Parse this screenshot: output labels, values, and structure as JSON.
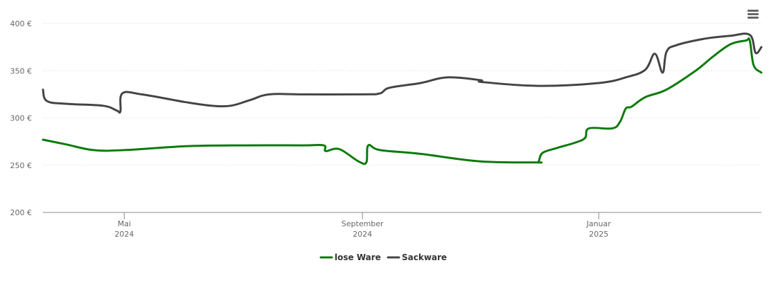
{
  "colors": {
    "lose_ware": "#0a7a0a",
    "sackware": "#444444",
    "grid": "#e6e6e6",
    "axis": "#888888"
  },
  "icons": {
    "menu": "hamburger-menu-icon"
  },
  "chart_data": {
    "type": "line",
    "title": "",
    "xlabel": "",
    "ylabel": "",
    "ylim": [
      200,
      400
    ],
    "xlim": [
      "2024-03-20",
      "2025-03-26"
    ],
    "y_ticks": [
      "200 €",
      "250 €",
      "300 €",
      "350 €",
      "400 €"
    ],
    "y_tick_values": [
      200,
      250,
      300,
      350,
      400
    ],
    "x_ticks": [
      {
        "date": "2024-05-01",
        "line1": "Mai",
        "line2": "2024"
      },
      {
        "date": "2024-09-01",
        "line1": "September",
        "line2": "2024"
      },
      {
        "date": "2025-01-01",
        "line1": "Januar",
        "line2": "2025"
      }
    ],
    "grid": true,
    "legend_position": "bottom-center",
    "series": [
      {
        "name": "lose Ware",
        "color": "#0a7a0a",
        "points": [
          [
            "2024-03-20",
            277
          ],
          [
            "2024-04-01",
            272
          ],
          [
            "2024-04-15",
            266
          ],
          [
            "2024-05-01",
            266
          ],
          [
            "2024-06-01",
            270
          ],
          [
            "2024-07-01",
            271
          ],
          [
            "2024-08-01",
            271
          ],
          [
            "2024-08-12",
            271
          ],
          [
            "2024-08-13",
            265
          ],
          [
            "2024-08-20",
            267
          ],
          [
            "2024-08-30",
            254
          ],
          [
            "2024-09-03",
            253
          ],
          [
            "2024-09-04",
            271
          ],
          [
            "2024-09-10",
            266
          ],
          [
            "2024-10-01",
            262
          ],
          [
            "2024-11-01",
            254
          ],
          [
            "2024-11-30",
            253
          ],
          [
            "2024-12-01",
            254
          ],
          [
            "2024-12-03",
            263
          ],
          [
            "2024-12-10",
            268
          ],
          [
            "2024-12-20",
            274
          ],
          [
            "2024-12-25",
            279
          ],
          [
            "2024-12-27",
            289
          ],
          [
            "2025-01-08",
            289
          ],
          [
            "2025-01-12",
            296
          ],
          [
            "2025-01-15",
            310
          ],
          [
            "2025-01-18",
            312
          ],
          [
            "2025-01-25",
            322
          ],
          [
            "2025-02-05",
            330
          ],
          [
            "2025-02-20",
            350
          ],
          [
            "2025-03-01",
            365
          ],
          [
            "2025-03-10",
            378
          ],
          [
            "2025-03-18",
            382
          ],
          [
            "2025-03-20",
            382
          ],
          [
            "2025-03-22",
            356
          ],
          [
            "2025-03-26",
            348
          ]
        ]
      },
      {
        "name": "Sackware",
        "color": "#444444",
        "points": [
          [
            "2024-03-20",
            330
          ],
          [
            "2024-03-22",
            318
          ],
          [
            "2024-04-01",
            315
          ],
          [
            "2024-04-20",
            313
          ],
          [
            "2024-04-27",
            308
          ],
          [
            "2024-04-29",
            307
          ],
          [
            "2024-04-30",
            326
          ],
          [
            "2024-05-10",
            325
          ],
          [
            "2024-06-01",
            317
          ],
          [
            "2024-06-15",
            313
          ],
          [
            "2024-06-25",
            313
          ],
          [
            "2024-07-05",
            319
          ],
          [
            "2024-07-15",
            325
          ],
          [
            "2024-08-01",
            325
          ],
          [
            "2024-09-01",
            325
          ],
          [
            "2024-09-10",
            326
          ],
          [
            "2024-09-15",
            332
          ],
          [
            "2024-10-01",
            337
          ],
          [
            "2024-10-15",
            343
          ],
          [
            "2024-11-01",
            340
          ],
          [
            "2024-11-02",
            338
          ],
          [
            "2024-12-01",
            334
          ],
          [
            "2025-01-01",
            337
          ],
          [
            "2025-01-15",
            343
          ],
          [
            "2025-01-25",
            351
          ],
          [
            "2025-01-30",
            368
          ],
          [
            "2025-02-03",
            348
          ],
          [
            "2025-02-05",
            370
          ],
          [
            "2025-02-10",
            377
          ],
          [
            "2025-02-25",
            384
          ],
          [
            "2025-03-10",
            387
          ],
          [
            "2025-03-20",
            388
          ],
          [
            "2025-03-23",
            369
          ],
          [
            "2025-03-26",
            375
          ]
        ]
      }
    ]
  }
}
